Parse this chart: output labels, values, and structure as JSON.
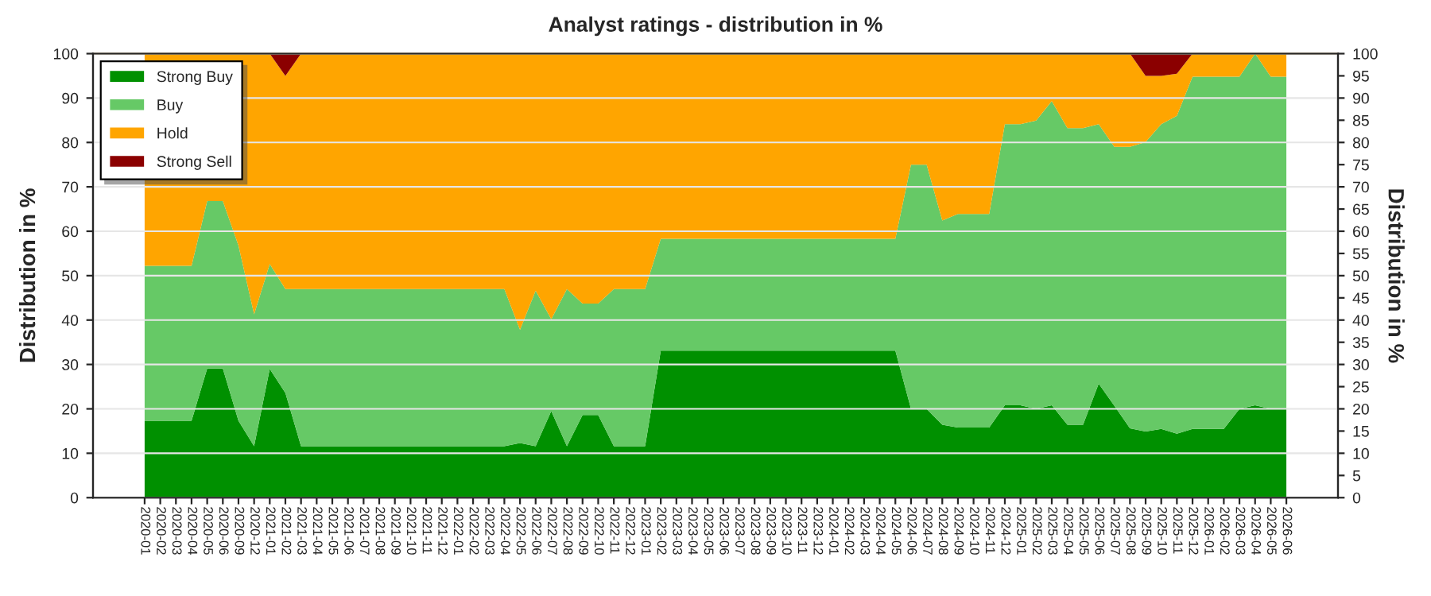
{
  "chart_data": {
    "type": "area",
    "stacked": true,
    "title": "Analyst ratings - distribution in %",
    "ylabel": "Distribution in %",
    "y2label": "Distribution in %",
    "categories": [
      "2020-01",
      "2020-02",
      "2020-03",
      "2020-04",
      "2020-05",
      "2020-06",
      "2020-09",
      "2020-12",
      "2021-01",
      "2021-02",
      "2021-03",
      "2021-04",
      "2021-05",
      "2021-06",
      "2021-07",
      "2021-08",
      "2021-09",
      "2021-10",
      "2021-11",
      "2021-12",
      "2022-01",
      "2022-02",
      "2022-03",
      "2022-04",
      "2022-05",
      "2022-06",
      "2022-07",
      "2022-08",
      "2022-09",
      "2022-10",
      "2022-11",
      "2022-12",
      "2023-01",
      "2023-02",
      "2023-03",
      "2023-04",
      "2023-05",
      "2023-06",
      "2023-07",
      "2023-08",
      "2023-09",
      "2023-10",
      "2023-11",
      "2023-12",
      "2024-01",
      "2024-02",
      "2024-03",
      "2024-04",
      "2024-05",
      "2024-06",
      "2024-07",
      "2024-08",
      "2024-09",
      "2024-10",
      "2024-11",
      "2024-12",
      "2025-01",
      "2025-02",
      "2025-03",
      "2025-04",
      "2025-05",
      "2025-06",
      "2025-07",
      "2025-08",
      "2025-09",
      "2025-10",
      "2025-11",
      "2025-12",
      "2026-01",
      "2026-02",
      "2026-03",
      "2026-04",
      "2026-05",
      "2026-06"
    ],
    "series": [
      {
        "name": "Strong Buy",
        "color": "#009000",
        "values": [
          17.3,
          17.3,
          17.3,
          17.3,
          29.1,
          29.1,
          17.3,
          11.6,
          29,
          23.6,
          11.6,
          11.6,
          11.6,
          11.6,
          11.6,
          11.6,
          11.6,
          11.6,
          11.6,
          11.6,
          11.6,
          11.6,
          11.6,
          11.6,
          12.3,
          11.6,
          19.5,
          11.6,
          18.6,
          18.6,
          11.6,
          11.6,
          11.6,
          33.1,
          33.1,
          33.1,
          33.1,
          33.1,
          33.1,
          33.1,
          33.1,
          33.1,
          33.1,
          33.1,
          33.1,
          33.1,
          33.1,
          33.1,
          33.1,
          20,
          20,
          16.4,
          15.8,
          15.8,
          15.8,
          20.8,
          20.8,
          20,
          20.8,
          16.4,
          16.4,
          25.7,
          20.7,
          15.6,
          14.9,
          15.5,
          14.4,
          15.5,
          15.5,
          15.5,
          20,
          20.8,
          20,
          20
        ]
      },
      {
        "name": "Buy",
        "color": "#66c966",
        "values": [
          34.9,
          34.9,
          34.9,
          34.9,
          37.7,
          37.7,
          39.5,
          29.7,
          23.6,
          23.4,
          35.4,
          35.4,
          35.4,
          35.4,
          35.4,
          35.4,
          35.4,
          35.4,
          35.4,
          35.4,
          35.4,
          35.4,
          35.4,
          35.4,
          25.5,
          35,
          20.7,
          35.4,
          25.1,
          25.1,
          35.4,
          35.4,
          35.4,
          25.2,
          25.2,
          25.2,
          25.2,
          25.2,
          25.2,
          25.2,
          25.2,
          25.2,
          25.2,
          25.2,
          25.2,
          25.2,
          25.2,
          25.2,
          25.2,
          55,
          55,
          46,
          48.1,
          48.1,
          48.1,
          63.3,
          63.3,
          64.9,
          68.5,
          66.8,
          66.8,
          58.4,
          58.3,
          63.4,
          65.2,
          68.6,
          71.6,
          79.3,
          79.3,
          79.3,
          74.8,
          79.2,
          74.8,
          74.8
        ]
      },
      {
        "name": "Hold",
        "color": "#ffa500",
        "values": [
          47.8,
          47.8,
          47.8,
          47.8,
          33.2,
          33.2,
          43.2,
          58.7,
          47.4,
          48,
          53,
          53,
          53,
          53,
          53,
          53,
          53,
          53,
          53,
          53,
          53,
          53,
          53,
          53,
          62.2,
          53.4,
          59.8,
          53,
          56.3,
          56.3,
          53,
          53,
          53,
          41.7,
          41.7,
          41.7,
          41.7,
          41.7,
          41.7,
          41.7,
          41.7,
          41.7,
          41.7,
          41.7,
          41.7,
          41.7,
          41.7,
          41.7,
          41.7,
          25,
          25,
          37.6,
          36.1,
          36.1,
          36.1,
          15.9,
          15.9,
          15.1,
          10.7,
          16.8,
          16.8,
          15.9,
          21,
          21,
          14.9,
          10.9,
          9.5,
          5.2,
          5.2,
          5.2,
          5.2,
          0,
          5.2,
          5.2
        ]
      },
      {
        "name": "Strong Sell",
        "color": "#8b0000",
        "values": [
          0,
          0,
          0,
          0,
          0,
          0,
          0,
          0,
          0,
          5,
          0,
          0,
          0,
          0,
          0,
          0,
          0,
          0,
          0,
          0,
          0,
          0,
          0,
          0,
          0,
          0,
          0,
          0,
          0,
          0,
          0,
          0,
          0,
          0,
          0,
          0,
          0,
          0,
          0,
          0,
          0,
          0,
          0,
          0,
          0,
          0,
          0,
          0,
          0,
          0,
          0,
          0,
          0,
          0,
          0,
          0,
          0,
          0,
          0,
          0,
          0,
          0,
          0,
          0,
          5,
          5,
          4.5,
          0,
          0,
          0,
          0,
          0,
          0,
          0
        ]
      }
    ],
    "ylim": [
      0,
      100
    ],
    "yticks": [
      0,
      10,
      20,
      30,
      40,
      50,
      60,
      70,
      80,
      90,
      100
    ],
    "y2lim": [
      0,
      100
    ],
    "y2ticks": [
      0,
      5,
      10,
      15,
      20,
      25,
      30,
      35,
      40,
      45,
      50,
      55,
      60,
      65,
      70,
      75,
      80,
      85,
      90,
      95,
      100
    ],
    "grid": "y",
    "legend": "top left"
  }
}
